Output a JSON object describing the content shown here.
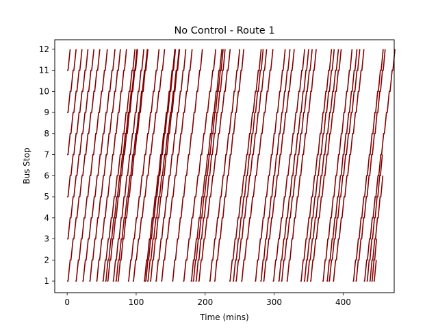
{
  "chart_data": {
    "type": "line",
    "title": "No Control - Route 1",
    "xlabel": "Time (mins)",
    "ylabel": "Bus Stop",
    "xlim": [
      -18,
      474
    ],
    "ylim": [
      0.45,
      12.45
    ],
    "xticks": [
      0,
      100,
      200,
      300,
      400
    ],
    "yticks": [
      1,
      2,
      3,
      4,
      5,
      6,
      7,
      8,
      9,
      10,
      11,
      12
    ],
    "grid": false,
    "color": "#800000",
    "series_note_count": 58,
    "trip_starts": [
      {
        "t": 0,
        "stop": 11
      },
      {
        "t": 0,
        "stop": 9
      },
      {
        "t": 0,
        "stop": 7
      },
      {
        "t": 0,
        "stop": 5
      },
      {
        "t": 0,
        "stop": 3
      },
      {
        "t": 0,
        "stop": 1
      },
      {
        "t": 12,
        "stop": 1
      },
      {
        "t": 22,
        "stop": 1
      },
      {
        "t": 32,
        "stop": 1
      },
      {
        "t": 42,
        "stop": 1
      },
      {
        "t": 51,
        "stop": 1
      },
      {
        "t": 55,
        "stop": 1
      },
      {
        "t": 58,
        "stop": 1
      },
      {
        "t": 66,
        "stop": 1
      },
      {
        "t": 70,
        "stop": 1
      },
      {
        "t": 73,
        "stop": 1
      },
      {
        "t": 88,
        "stop": 1
      },
      {
        "t": 95,
        "stop": 1
      },
      {
        "t": 111,
        "stop": 1
      },
      {
        "t": 113,
        "stop": 1
      },
      {
        "t": 116,
        "stop": 1
      },
      {
        "t": 120,
        "stop": 1
      },
      {
        "t": 128,
        "stop": 1
      },
      {
        "t": 136,
        "stop": 1
      },
      {
        "t": 152,
        "stop": 1
      },
      {
        "t": 168,
        "stop": 1
      },
      {
        "t": 179,
        "stop": 1
      },
      {
        "t": 182,
        "stop": 1
      },
      {
        "t": 186,
        "stop": 1
      },
      {
        "t": 190,
        "stop": 1
      },
      {
        "t": 206,
        "stop": 1
      },
      {
        "t": 213,
        "stop": 1
      },
      {
        "t": 235,
        "stop": 1
      },
      {
        "t": 240,
        "stop": 1
      },
      {
        "t": 244,
        "stop": 1
      },
      {
        "t": 252,
        "stop": 1
      },
      {
        "t": 272,
        "stop": 1
      },
      {
        "t": 280,
        "stop": 1
      },
      {
        "t": 284,
        "stop": 1
      },
      {
        "t": 298,
        "stop": 1
      },
      {
        "t": 306,
        "stop": 1
      },
      {
        "t": 310,
        "stop": 1
      },
      {
        "t": 318,
        "stop": 1
      },
      {
        "t": 338,
        "stop": 1
      },
      {
        "t": 343,
        "stop": 1
      },
      {
        "t": 347,
        "stop": 1
      },
      {
        "t": 352,
        "stop": 1
      },
      {
        "t": 370,
        "stop": 1
      },
      {
        "t": 376,
        "stop": 1
      },
      {
        "t": 379,
        "stop": 1
      },
      {
        "t": 385,
        "stop": 1
      },
      {
        "t": 414,
        "stop": 1
      },
      {
        "t": 418,
        "stop": 1
      },
      {
        "t": 430,
        "stop": 1
      },
      {
        "t": 434,
        "stop": 1
      },
      {
        "t": 438,
        "stop": 1
      },
      {
        "t": 441,
        "stop": 1
      },
      {
        "t": 444,
        "stop": 1
      }
    ],
    "trip_end_stops": [
      12,
      12,
      12,
      12,
      12,
      12,
      12,
      12,
      12,
      12,
      12,
      12,
      12,
      12,
      12,
      12,
      12,
      12,
      12,
      12,
      12,
      12,
      12,
      12,
      12,
      12,
      12,
      12,
      12,
      12,
      12,
      12,
      12,
      12,
      12,
      12,
      12,
      12,
      12,
      12,
      12,
      12,
      12,
      12,
      12,
      12,
      12,
      12,
      12,
      12,
      12,
      12,
      12,
      12,
      7,
      6,
      3,
      2
    ],
    "minutes_per_stop": [
      4.3,
      4.3,
      4.3,
      4.3,
      4.3,
      4.3,
      4.2,
      4.3,
      4.1,
      4.0,
      4.3,
      4.2,
      4.0,
      4.1,
      4.2,
      4.0,
      4.1,
      4.2,
      4.1,
      4.0,
      4.2,
      3.9,
      4.0,
      4.1,
      4.0,
      4.3,
      4.1,
      4.0,
      3.9,
      4.2,
      4.0,
      3.9,
      4.2,
      4.0,
      4.1,
      4.2,
      4.0,
      3.9,
      4.1,
      4.2,
      4.0,
      4.1,
      3.9,
      4.1,
      4.0,
      4.2,
      4.1,
      3.9,
      4.0,
      4.1,
      4.1,
      4.0,
      3.9,
      4.1,
      3.8,
      3.9,
      3.7,
      4.0
    ]
  }
}
